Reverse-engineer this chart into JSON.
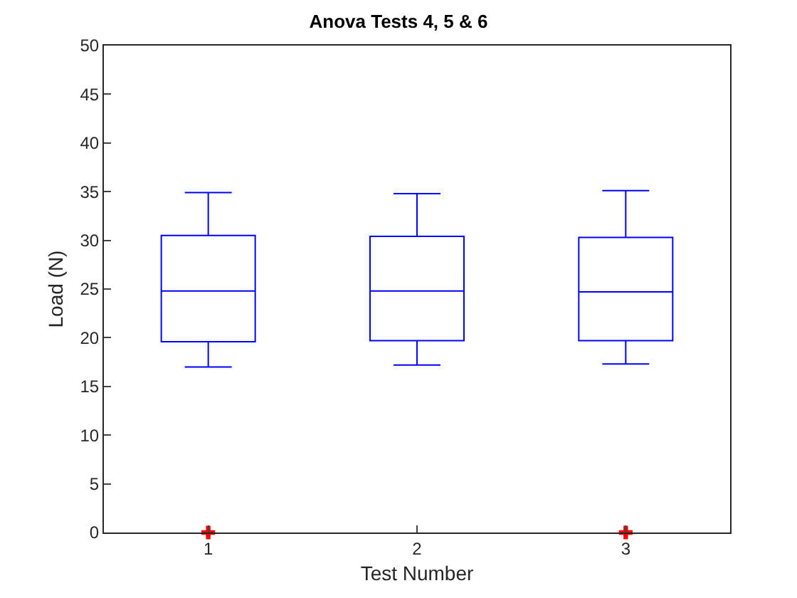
{
  "chart_data": {
    "type": "box",
    "title": "Anova Tests 4, 5 & 6",
    "xlabel": "Test Number",
    "ylabel": "Load (N)",
    "categories": [
      "1",
      "2",
      "3"
    ],
    "series": [
      {
        "color": "#0000ff",
        "boxes": [
          {
            "low": 17.0,
            "q1": 19.6,
            "median": 24.8,
            "q3": 30.5,
            "high": 34.9,
            "outliers": [
              0
            ]
          },
          {
            "low": 17.2,
            "q1": 19.7,
            "median": 24.8,
            "q3": 30.4,
            "high": 34.8
          },
          {
            "low": 17.3,
            "q1": 19.7,
            "median": 24.7,
            "q3": 30.3,
            "high": 35.1,
            "outliers": [
              0
            ]
          }
        ]
      }
    ],
    "ylim": [
      0,
      50
    ],
    "yticks": [
      0,
      5,
      10,
      15,
      20,
      25,
      30,
      35,
      40,
      45,
      50
    ]
  }
}
